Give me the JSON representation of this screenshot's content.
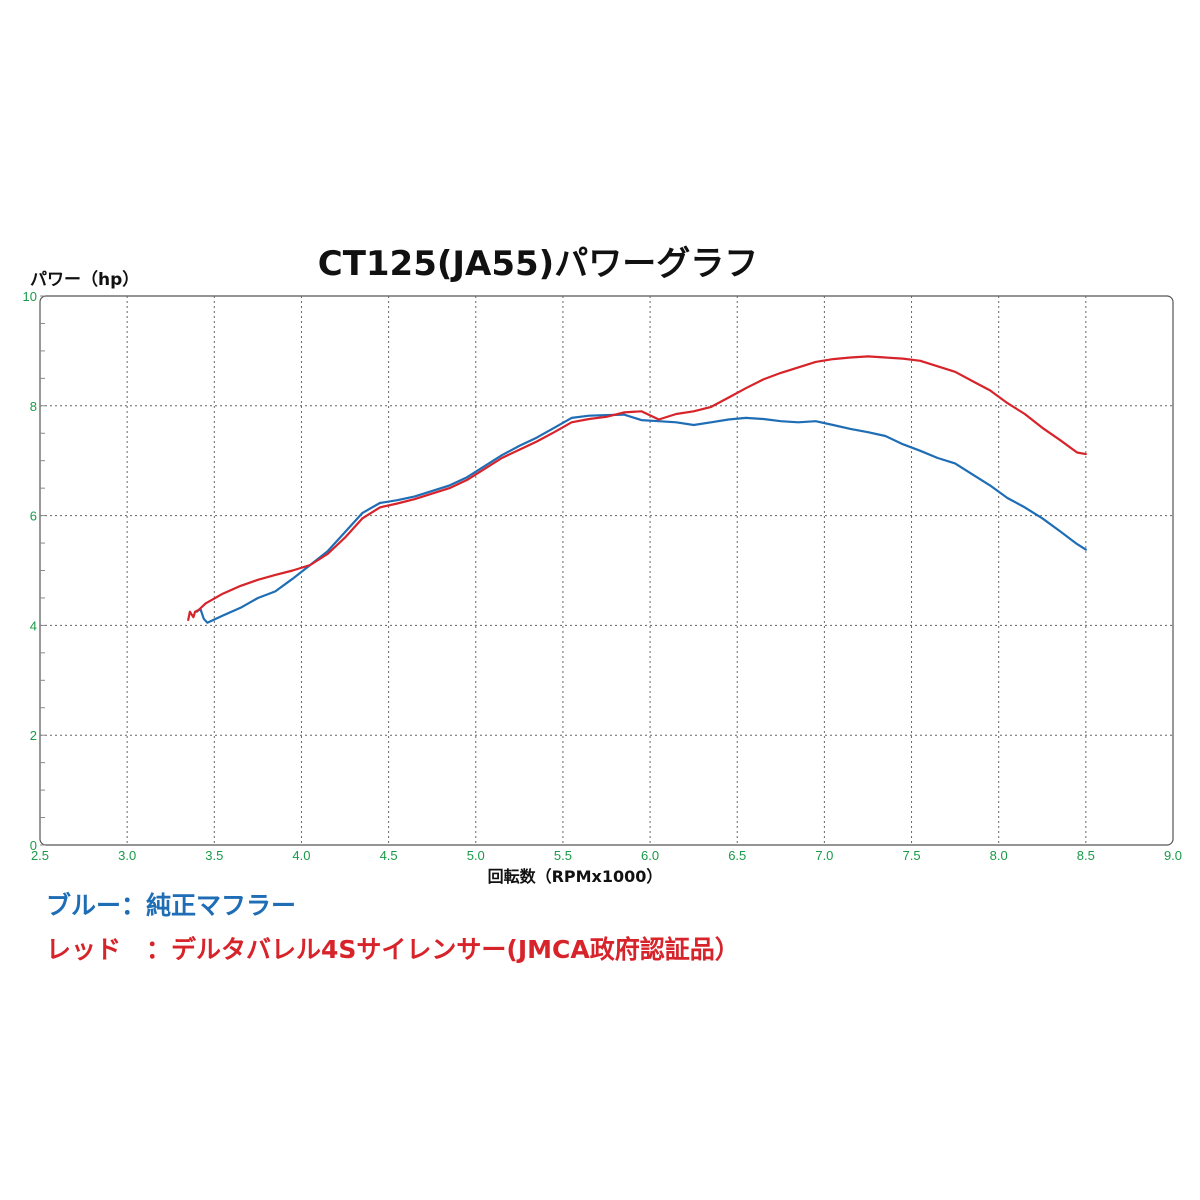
{
  "chart_data": {
    "type": "line",
    "title": "CT125(JA55)パワーグラフ",
    "xlabel": "回転数（RPMx1000）",
    "ylabel": "パワー（hp）",
    "xlim": [
      2.5,
      9.0
    ],
    "ylim": [
      0,
      10
    ],
    "xticks": [
      2.5,
      3.0,
      3.5,
      4.0,
      4.5,
      5.0,
      5.5,
      6.0,
      6.5,
      7.0,
      7.5,
      8.0,
      8.5,
      9.0
    ],
    "xtick_labels": [
      "2.5",
      "3.0",
      "3.5",
      "4.0",
      "4.5",
      "5.0",
      "5.5",
      "6.0",
      "6.5",
      "7.0",
      "7.5",
      "8.0",
      "8.5",
      "9.0"
    ],
    "yticks": [
      0,
      2,
      4,
      6,
      8,
      10
    ],
    "ytick_labels": [
      "0",
      "2",
      "4",
      "6",
      "8",
      "10"
    ],
    "grid": "dotted",
    "tick_color": "#1a9a48",
    "series": [
      {
        "key": "blue",
        "color": "#1e6db5",
        "x": [
          3.4,
          3.42,
          3.44,
          3.46,
          3.55,
          3.65,
          3.75,
          3.85,
          3.95,
          4.05,
          4.15,
          4.25,
          4.35,
          4.45,
          4.55,
          4.65,
          4.75,
          4.85,
          4.95,
          5.05,
          5.15,
          5.25,
          5.35,
          5.45,
          5.55,
          5.65,
          5.75,
          5.85,
          5.95,
          6.05,
          6.15,
          6.25,
          6.35,
          6.45,
          6.55,
          6.65,
          6.75,
          6.85,
          6.95,
          7.05,
          7.15,
          7.25,
          7.35,
          7.45,
          7.55,
          7.65,
          7.75,
          7.85,
          7.95,
          8.05,
          8.15,
          8.25,
          8.35,
          8.45,
          8.5
        ],
        "y": [
          4.25,
          4.3,
          4.12,
          4.05,
          4.18,
          4.32,
          4.5,
          4.62,
          4.85,
          5.1,
          5.35,
          5.7,
          6.05,
          6.23,
          6.28,
          6.35,
          6.45,
          6.55,
          6.7,
          6.9,
          7.1,
          7.27,
          7.42,
          7.6,
          7.78,
          7.82,
          7.83,
          7.84,
          7.74,
          7.72,
          7.7,
          7.65,
          7.7,
          7.75,
          7.78,
          7.76,
          7.72,
          7.7,
          7.72,
          7.65,
          7.58,
          7.52,
          7.45,
          7.3,
          7.18,
          7.05,
          6.95,
          6.75,
          6.55,
          6.32,
          6.15,
          5.95,
          5.72,
          5.48,
          5.38
        ]
      },
      {
        "key": "red",
        "color": "#d7232a",
        "x": [
          3.35,
          3.36,
          3.37,
          3.38,
          3.39,
          3.41,
          3.45,
          3.55,
          3.65,
          3.75,
          3.85,
          3.95,
          4.05,
          4.15,
          4.25,
          4.35,
          4.45,
          4.55,
          4.65,
          4.75,
          4.85,
          4.95,
          5.05,
          5.15,
          5.25,
          5.35,
          5.45,
          5.55,
          5.65,
          5.75,
          5.85,
          5.95,
          6.05,
          6.15,
          6.25,
          6.35,
          6.45,
          6.55,
          6.65,
          6.75,
          6.85,
          6.95,
          7.05,
          7.15,
          7.25,
          7.35,
          7.45,
          7.55,
          7.65,
          7.75,
          7.85,
          7.95,
          8.05,
          8.15,
          8.25,
          8.35,
          8.45,
          8.5
        ],
        "y": [
          4.1,
          4.25,
          4.2,
          4.15,
          4.25,
          4.28,
          4.4,
          4.58,
          4.72,
          4.83,
          4.92,
          5.0,
          5.1,
          5.3,
          5.6,
          5.95,
          6.15,
          6.22,
          6.3,
          6.4,
          6.5,
          6.65,
          6.85,
          7.05,
          7.2,
          7.35,
          7.52,
          7.7,
          7.76,
          7.8,
          7.88,
          7.9,
          7.75,
          7.85,
          7.9,
          7.98,
          8.15,
          8.32,
          8.48,
          8.6,
          8.7,
          8.8,
          8.85,
          8.88,
          8.9,
          8.88,
          8.86,
          8.82,
          8.72,
          8.62,
          8.45,
          8.28,
          8.05,
          7.85,
          7.6,
          7.38,
          7.15,
          7.12
        ]
      }
    ]
  },
  "legend": {
    "blue": "ブルー：純正マフラー",
    "red": "レッド　：デルタバレル4Sサイレンサー(JMCA政府認証品）"
  }
}
